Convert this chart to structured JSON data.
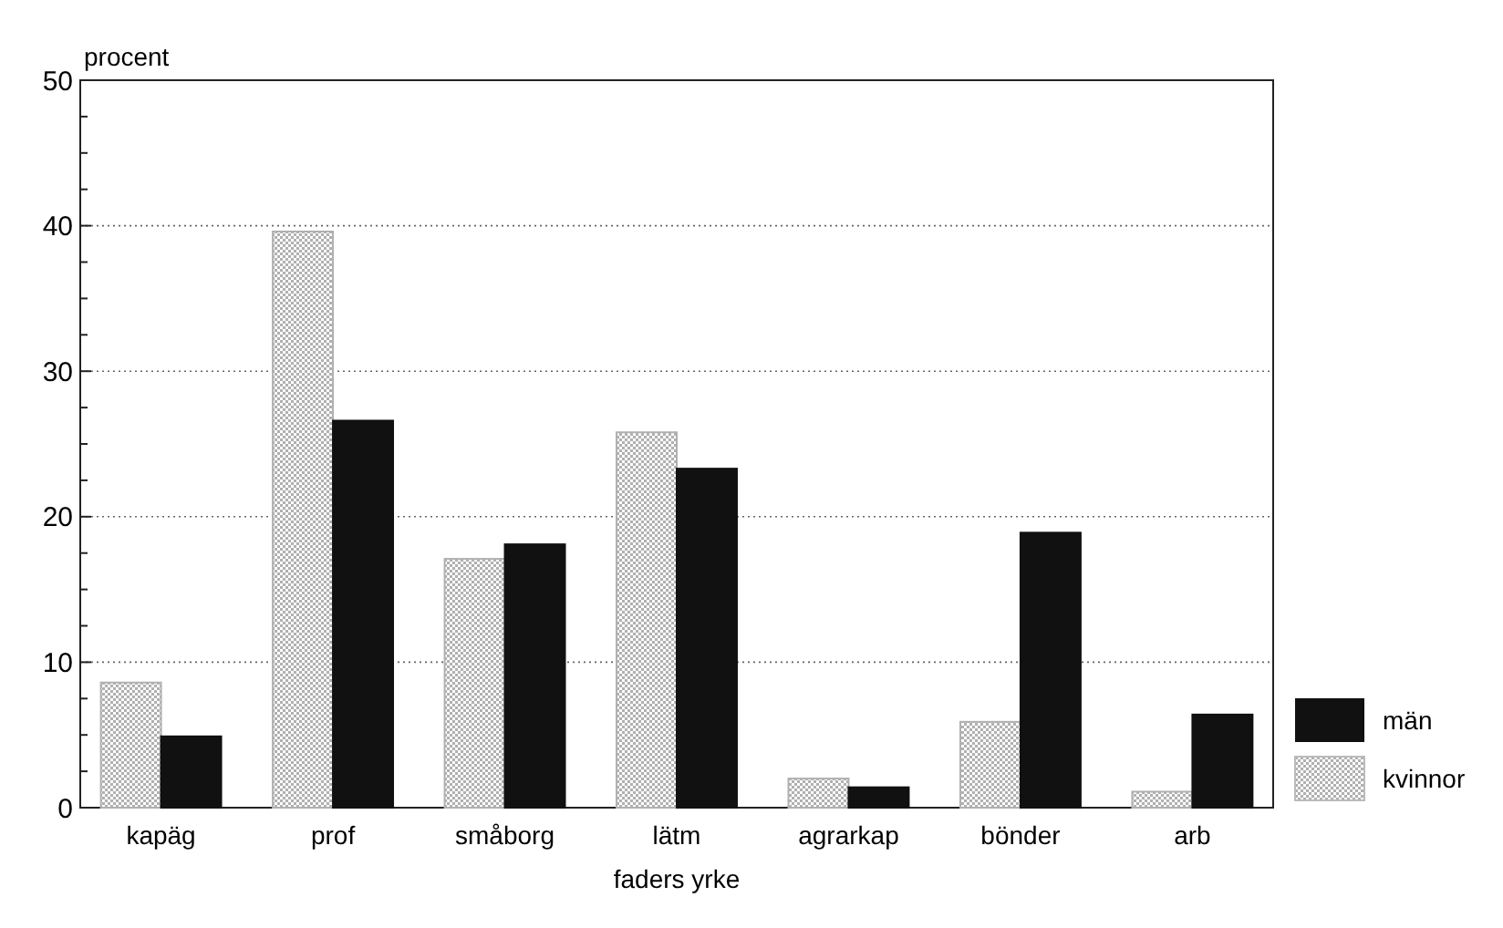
{
  "chart_data": {
    "type": "bar",
    "ylabel": "procent",
    "xlabel": "faders yrke",
    "categories": [
      "kapäg",
      "prof",
      "småborg",
      "lätm",
      "agrarkap",
      "bönder",
      "arb"
    ],
    "series": [
      {
        "name": "kvinnor",
        "color": "#b0b0b0",
        "values": [
          8.6,
          39.6,
          17.1,
          25.8,
          2.0,
          5.9,
          1.1
        ]
      },
      {
        "name": "män",
        "color": "#111111",
        "values": [
          4.9,
          26.6,
          18.1,
          23.3,
          1.4,
          18.9,
          6.4
        ]
      }
    ],
    "ylim": [
      0,
      50
    ],
    "yticks": [
      0,
      {
        "value": 2.5,
        "label": null
      },
      {
        "value": 5,
        "label": null
      },
      {
        "value": 7.5,
        "label": null
      },
      10,
      {
        "value": 12.5,
        "label": null
      },
      {
        "value": 15,
        "label": null
      },
      {
        "value": 17.5,
        "label": null
      },
      20,
      {
        "value": 22.5,
        "label": null
      },
      {
        "value": 25,
        "label": null
      },
      {
        "value": 27.5,
        "label": null
      },
      30,
      {
        "value": 32.5,
        "label": null
      },
      {
        "value": 35,
        "label": null
      },
      {
        "value": 37.5,
        "label": null
      },
      40,
      {
        "value": 42.5,
        "label": null
      },
      {
        "value": 45,
        "label": null
      },
      {
        "value": 47.5,
        "label": null
      },
      50
    ],
    "grid": "y",
    "legend": "bottom right"
  }
}
